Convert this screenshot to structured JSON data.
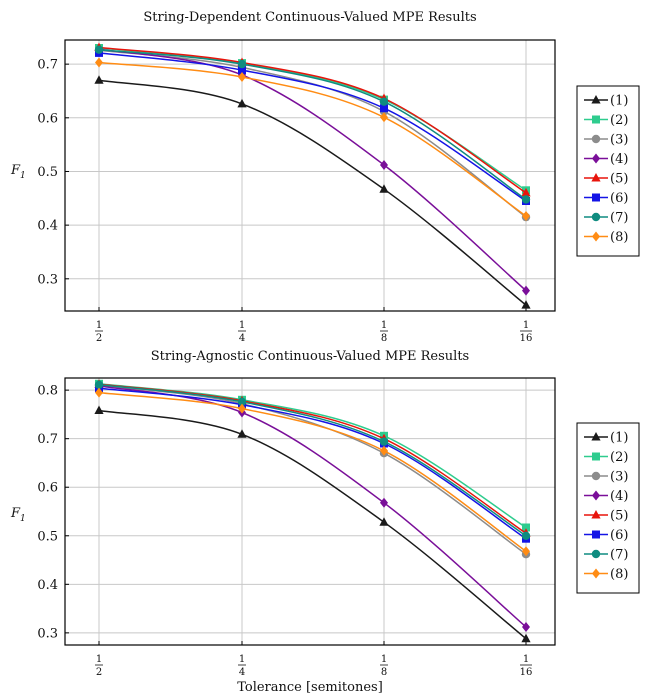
{
  "colors": {
    "axis": "#000000",
    "grid": "#c8c8c8",
    "series": [
      "#1a1a1a",
      "#2ecc8e",
      "#8c8c8c",
      "#7a0f99",
      "#e8140c",
      "#1414e6",
      "#0f8c80",
      "#ff8c14"
    ]
  },
  "markers": [
    "triangle",
    "square",
    "circle",
    "diamond",
    "triangle",
    "square",
    "circle",
    "diamond"
  ],
  "xlabel": "Tolerance [semitones]",
  "chart_data": [
    {
      "type": "line",
      "title": "String-Dependent Continuous-Valued MPE Results",
      "ylabel": "F1",
      "categories": [
        {
          "num": "1",
          "den": "2"
        },
        {
          "num": "1",
          "den": "4"
        },
        {
          "num": "1",
          "den": "8"
        },
        {
          "num": "1",
          "den": "16"
        }
      ],
      "ylim": [
        0.24,
        0.745
      ],
      "yticks": [
        "0.3",
        "0.4",
        "0.5",
        "0.6",
        "0.7"
      ],
      "grid": true,
      "legend_position": "right",
      "series": [
        {
          "name": "(1)",
          "values": [
            0.67,
            0.626,
            0.467,
            0.251
          ]
        },
        {
          "name": "(2)",
          "values": [
            0.73,
            0.702,
            0.634,
            0.465
          ]
        },
        {
          "name": "(3)",
          "values": [
            0.726,
            0.694,
            0.612,
            0.415
          ]
        },
        {
          "name": "(4)",
          "values": [
            0.728,
            0.68,
            0.512,
            0.278
          ]
        },
        {
          "name": "(5)",
          "values": [
            0.731,
            0.703,
            0.636,
            0.46
          ]
        },
        {
          "name": "(6)",
          "values": [
            0.721,
            0.689,
            0.618,
            0.445
          ]
        },
        {
          "name": "(7)",
          "values": [
            0.727,
            0.7,
            0.63,
            0.448
          ]
        },
        {
          "name": "(8)",
          "values": [
            0.703,
            0.676,
            0.601,
            0.417
          ]
        }
      ]
    },
    {
      "type": "line",
      "title": "String-Agnostic Continuous-Valued MPE Results",
      "ylabel": "F1",
      "categories": [
        {
          "num": "1",
          "den": "2"
        },
        {
          "num": "1",
          "den": "4"
        },
        {
          "num": "1",
          "den": "8"
        },
        {
          "num": "1",
          "den": "16"
        }
      ],
      "ylim": [
        0.275,
        0.825
      ],
      "yticks": [
        "0.3",
        "0.4",
        "0.5",
        "0.6",
        "0.7",
        "0.8"
      ],
      "grid": true,
      "legend_position": "right",
      "series": [
        {
          "name": "(1)",
          "values": [
            0.758,
            0.709,
            0.528,
            0.288
          ]
        },
        {
          "name": "(2)",
          "values": [
            0.813,
            0.78,
            0.706,
            0.517
          ]
        },
        {
          "name": "(3)",
          "values": [
            0.81,
            0.772,
            0.67,
            0.462
          ]
        },
        {
          "name": "(4)",
          "values": [
            0.809,
            0.754,
            0.568,
            0.312
          ]
        },
        {
          "name": "(5)",
          "values": [
            0.812,
            0.778,
            0.7,
            0.505
          ]
        },
        {
          "name": "(6)",
          "values": [
            0.804,
            0.77,
            0.69,
            0.494
          ]
        },
        {
          "name": "(7)",
          "values": [
            0.811,
            0.776,
            0.694,
            0.5
          ]
        },
        {
          "name": "(8)",
          "values": [
            0.795,
            0.762,
            0.675,
            0.468
          ]
        }
      ]
    }
  ]
}
